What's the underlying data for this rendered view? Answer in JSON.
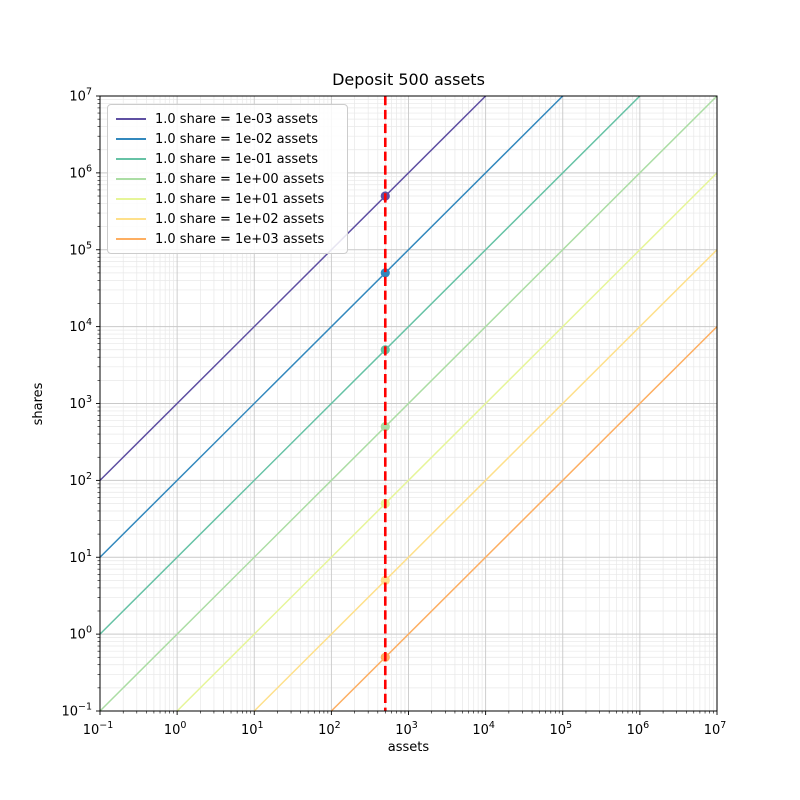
{
  "chart_data": {
    "type": "line",
    "title": "Deposit 500 assets",
    "xlabel": "assets",
    "ylabel": "shares",
    "xscale": "log",
    "yscale": "log",
    "xlim": [
      0.1,
      10000000
    ],
    "ylim": [
      0.1,
      10000000
    ],
    "x_tick_exponents": [
      -1,
      0,
      1,
      2,
      3,
      4,
      5,
      6,
      7
    ],
    "y_tick_exponents": [
      -1,
      0,
      1,
      2,
      3,
      4,
      5,
      6,
      7
    ],
    "grid": {
      "major": true,
      "minor": true,
      "major_color": "#c9c9c9",
      "minor_color": "#e8e8e8"
    },
    "legend_position": "upper-left",
    "series": [
      {
        "label": "1.0 share = 1e-03 assets",
        "color": "#5e4fa2",
        "assets_per_share": 0.001,
        "marker_at": {
          "x": 500,
          "y": 500000
        }
      },
      {
        "label": "1.0 share = 1e-02 assets",
        "color": "#3288bd",
        "assets_per_share": 0.01,
        "marker_at": {
          "x": 500,
          "y": 50000
        }
      },
      {
        "label": "1.0 share = 1e-01 assets",
        "color": "#66c2a5",
        "assets_per_share": 0.1,
        "marker_at": {
          "x": 500,
          "y": 5000
        }
      },
      {
        "label": "1.0 share = 1e+00 assets",
        "color": "#abdda4",
        "assets_per_share": 1,
        "marker_at": {
          "x": 500,
          "y": 500
        }
      },
      {
        "label": "1.0 share = 1e+01 assets",
        "color": "#e6f598",
        "assets_per_share": 10,
        "marker_at": {
          "x": 500,
          "y": 50
        }
      },
      {
        "label": "1.0 share = 1e+02 assets",
        "color": "#fee08b",
        "assets_per_share": 100,
        "marker_at": {
          "x": 500,
          "y": 5
        }
      },
      {
        "label": "1.0 share = 1e+03 assets",
        "color": "#fdae61",
        "assets_per_share": 1000,
        "marker_at": {
          "x": 500,
          "y": 0.5
        }
      }
    ],
    "vline": {
      "x": 500,
      "color": "#ff0000",
      "style": "dashed"
    },
    "spine_color": "#000000"
  }
}
